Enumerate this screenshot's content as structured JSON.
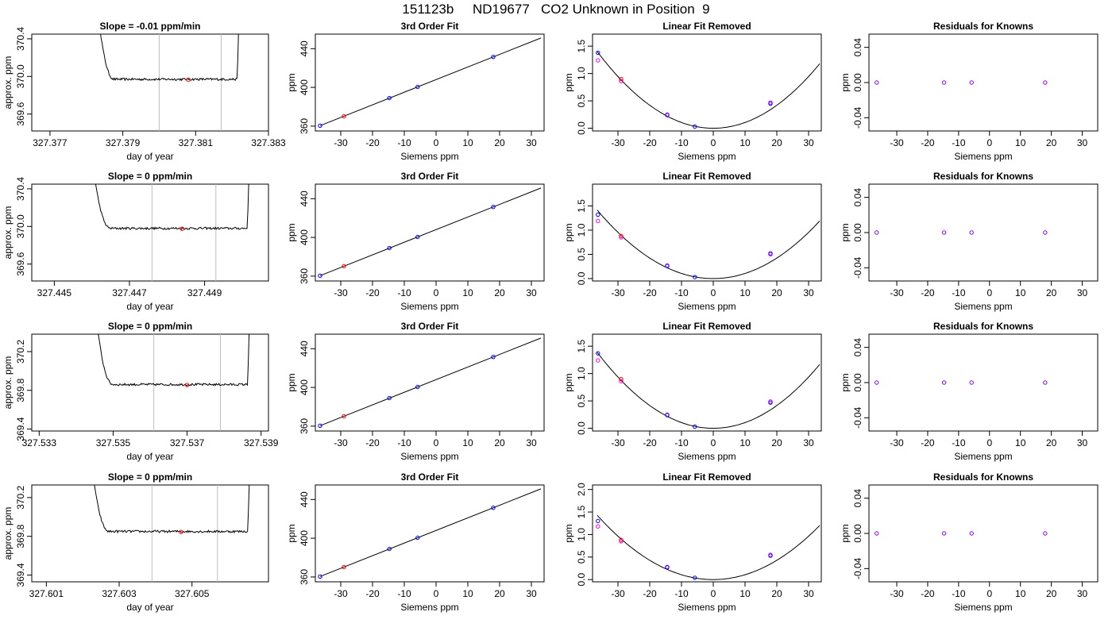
{
  "figure_title": "151123b     ND19677   CO2 Unknown in Position  9",
  "colors": {
    "known": "#0000ff",
    "unknown": "#ff0000",
    "residual": "#8800ff",
    "unknown_alt": "#ff00ff",
    "window": "#bebebe",
    "line": "#000000"
  },
  "chart_data": [
    {
      "id": "p00",
      "type": "line",
      "title": "Slope =  -0.01  ppm/min",
      "xlabel": "day of year",
      "ylabel": "approx. ppm",
      "xlim": [
        327.3765,
        327.383
      ],
      "ylim": [
        369.42,
        370.45
      ],
      "xticks": [
        327.377,
        327.379,
        327.381,
        327.383
      ],
      "xtick_labels": [
        "327.377",
        "327.379",
        "327.381",
        "327.383"
      ],
      "yticks": [
        369.6,
        370.0,
        370.4
      ],
      "ytick_labels": [
        "369.6",
        "370.0",
        "370.4"
      ],
      "vlines": [
        327.38,
        327.3817
      ],
      "trace": {
        "x0": 327.3783,
        "x1": 327.3822,
        "level": 369.97,
        "start": 370.75,
        "end": 370.75
      },
      "marker": {
        "x": 327.3808,
        "y": 369.965
      }
    },
    {
      "id": "p01",
      "type": "scatter",
      "title": "3rd Order Fit",
      "xlabel": "Siemens ppm",
      "ylabel": "ppm",
      "xlim": [
        -38,
        34
      ],
      "ylim": [
        355,
        455
      ],
      "xticks": [
        -30,
        -20,
        -10,
        0,
        10,
        20,
        30
      ],
      "xtick_labels": [
        "-30",
        "-20",
        "-10",
        "0",
        "10",
        "20",
        "30"
      ],
      "yticks": [
        360,
        400,
        440
      ],
      "ytick_labels": [
        "360",
        "400",
        "440"
      ],
      "fit_line": [
        [
          -36.5,
          360.5
        ],
        [
          33,
          451
        ]
      ],
      "known_points": [
        [
          -36.5,
          360.5
        ],
        [
          -14.7,
          389
        ],
        [
          -5.8,
          400.5
        ],
        [
          18,
          431.5
        ]
      ],
      "unknown_points": [
        [
          -29,
          370.2
        ]
      ]
    },
    {
      "id": "p02",
      "type": "scatter",
      "title": "Linear Fit Removed",
      "xlabel": "Siemens ppm",
      "ylabel": "ppm",
      "xlim": [
        -38,
        34
      ],
      "ylim": [
        -0.05,
        1.72
      ],
      "xticks": [
        -30,
        -20,
        -10,
        0,
        10,
        20,
        30
      ],
      "xtick_labels": [
        "-30",
        "-20",
        "-10",
        "0",
        "10",
        "20",
        "30"
      ],
      "yticks": [
        0.0,
        0.5,
        1.0,
        1.5
      ],
      "ytick_labels": [
        "0.0",
        "0.5",
        "1.0",
        "1.5"
      ],
      "curve": {
        "a": 0.00105,
        "b": 0.0,
        "c": 0.0,
        "xmin": -36.5,
        "xmax": 33.5
      },
      "known_points": [
        [
          -36.3,
          1.38
        ],
        [
          -14.5,
          0.24
        ],
        [
          -5.8,
          0.03
        ],
        [
          18,
          0.45
        ]
      ],
      "unknown_points": [
        [
          -29,
          0.9
        ]
      ],
      "alt_points": [
        [
          -36.3,
          1.24
        ],
        [
          -29,
          0.86
        ],
        [
          -14.5,
          0.25
        ],
        [
          18,
          0.47
        ]
      ]
    },
    {
      "id": "p03",
      "type": "scatter",
      "title": "Residuals for Knowns",
      "xlabel": "Siemens ppm",
      "ylabel": "ppm",
      "xlim": [
        -39,
        35
      ],
      "ylim": [
        -0.055,
        0.055
      ],
      "xticks": [
        -30,
        -20,
        -10,
        0,
        10,
        20,
        30
      ],
      "xtick_labels": [
        "-30",
        "-20",
        "-10",
        "0",
        "10",
        "20",
        "30"
      ],
      "yticks": [
        -0.04,
        0.0,
        0.04
      ],
      "ytick_labels": [
        "-0.04",
        "0.00",
        "0.04"
      ],
      "residual_points": [
        [
          -36.5,
          0.0
        ],
        [
          -14.7,
          0.0
        ],
        [
          -5.8,
          0.0
        ],
        [
          18,
          0.0
        ]
      ]
    },
    {
      "id": "p10",
      "type": "line",
      "title": "Slope =  0  ppm/min",
      "xlabel": "day of year",
      "ylabel": "approx. ppm",
      "xlim": [
        327.4444,
        327.4507
      ],
      "ylim": [
        369.42,
        370.45
      ],
      "xticks": [
        327.445,
        327.447,
        327.449
      ],
      "xtick_labels": [
        "327.445",
        "327.447",
        "327.449"
      ],
      "yticks": [
        369.6,
        370.0,
        370.4
      ],
      "ytick_labels": [
        "369.6",
        "370.0",
        "370.4"
      ],
      "vlines": [
        327.4476,
        327.4493
      ],
      "trace": {
        "x0": 327.446,
        "x1": 327.4502,
        "level": 369.98,
        "start": 370.75,
        "end": 370.75
      },
      "marker": {
        "x": 327.4484,
        "y": 369.975
      }
    },
    {
      "id": "p11",
      "type": "scatter",
      "title": "3rd Order Fit",
      "xlabel": "Siemens ppm",
      "ylabel": "ppm",
      "xlim": [
        -38,
        34
      ],
      "ylim": [
        355,
        455
      ],
      "xticks": [
        -30,
        -20,
        -10,
        0,
        10,
        20,
        30
      ],
      "xtick_labels": [
        "-30",
        "-20",
        "-10",
        "0",
        "10",
        "20",
        "30"
      ],
      "yticks": [
        360,
        400,
        440
      ],
      "ytick_labels": [
        "360",
        "400",
        "440"
      ],
      "fit_line": [
        [
          -36.5,
          360.5
        ],
        [
          33,
          451
        ]
      ],
      "known_points": [
        [
          -36.5,
          360.5
        ],
        [
          -14.7,
          389
        ],
        [
          -5.8,
          400.5
        ],
        [
          18,
          431.5
        ]
      ],
      "unknown_points": [
        [
          -29,
          370.3
        ]
      ]
    },
    {
      "id": "p12",
      "type": "scatter",
      "title": "Linear Fit Removed",
      "xlabel": "Siemens ppm",
      "ylabel": "ppm",
      "xlim": [
        -38,
        34
      ],
      "ylim": [
        -0.05,
        1.95
      ],
      "xticks": [
        -30,
        -20,
        -10,
        0,
        10,
        20,
        30
      ],
      "xtick_labels": [
        "-30",
        "-20",
        "-10",
        "0",
        "10",
        "20",
        "30"
      ],
      "yticks": [
        0.0,
        0.5,
        1.0,
        1.5
      ],
      "ytick_labels": [
        "0.0",
        "0.5",
        "1.0",
        "1.5"
      ],
      "curve": {
        "a": 0.00106,
        "b": 0.0,
        "c": 0.0,
        "xmin": -36.5,
        "xmax": 33.5
      },
      "known_points": [
        [
          -36.3,
          1.32
        ],
        [
          -14.5,
          0.26
        ],
        [
          -5.8,
          0.03
        ],
        [
          18,
          0.52
        ]
      ],
      "unknown_points": [
        [
          -29,
          0.88
        ]
      ],
      "alt_points": [
        [
          -36.3,
          1.19
        ],
        [
          -29,
          0.85
        ],
        [
          -14.5,
          0.27
        ],
        [
          18,
          0.5
        ]
      ]
    },
    {
      "id": "p13",
      "type": "scatter",
      "title": "Residuals for Knowns",
      "xlabel": "Siemens ppm",
      "ylabel": "ppm",
      "xlim": [
        -39,
        35
      ],
      "ylim": [
        -0.055,
        0.055
      ],
      "xticks": [
        -30,
        -20,
        -10,
        0,
        10,
        20,
        30
      ],
      "xtick_labels": [
        "-30",
        "-20",
        "-10",
        "0",
        "10",
        "20",
        "30"
      ],
      "yticks": [
        -0.04,
        0.0,
        0.04
      ],
      "ytick_labels": [
        "-0.04",
        "0.00",
        "0.04"
      ],
      "residual_points": [
        [
          -36.5,
          0.0
        ],
        [
          -14.7,
          0.0
        ],
        [
          -5.8,
          0.0
        ],
        [
          18,
          0.0
        ]
      ]
    },
    {
      "id": "p20",
      "type": "line",
      "title": "Slope =  0  ppm/min",
      "xlabel": "day of year",
      "ylabel": "approx. ppm",
      "xlim": [
        327.5328,
        327.5392
      ],
      "ylim": [
        369.38,
        370.38
      ],
      "xticks": [
        327.533,
        327.535,
        327.537,
        327.539
      ],
      "xtick_labels": [
        "327.533",
        "327.535",
        "327.537",
        "327.539"
      ],
      "yticks": [
        369.4,
        369.8,
        370.2
      ],
      "ytick_labels": [
        "369.4",
        "369.8",
        "370.2"
      ],
      "vlines": [
        327.5361,
        327.5379
      ],
      "trace": {
        "x0": 327.5345,
        "x1": 327.5387,
        "level": 369.86,
        "start": 370.7,
        "end": 370.7
      },
      "marker": {
        "x": 327.537,
        "y": 369.855
      }
    },
    {
      "id": "p21",
      "type": "scatter",
      "title": "3rd Order Fit",
      "xlabel": "Siemens ppm",
      "ylabel": "ppm",
      "xlim": [
        -38,
        34
      ],
      "ylim": [
        355,
        455
      ],
      "xticks": [
        -30,
        -20,
        -10,
        0,
        10,
        20,
        30
      ],
      "xtick_labels": [
        "-30",
        "-20",
        "-10",
        "0",
        "10",
        "20",
        "30"
      ],
      "yticks": [
        360,
        400,
        440
      ],
      "ytick_labels": [
        "360",
        "400",
        "440"
      ],
      "fit_line": [
        [
          -36.5,
          360.5
        ],
        [
          33,
          451
        ]
      ],
      "known_points": [
        [
          -36.5,
          360.5
        ],
        [
          -14.7,
          389
        ],
        [
          -5.8,
          400.5
        ],
        [
          18,
          431.5
        ]
      ],
      "unknown_points": [
        [
          -29,
          370.2
        ]
      ]
    },
    {
      "id": "p22",
      "type": "scatter",
      "title": "Linear Fit Removed",
      "xlabel": "Siemens ppm",
      "ylabel": "ppm",
      "xlim": [
        -38,
        34
      ],
      "ylim": [
        -0.05,
        1.72
      ],
      "xticks": [
        -30,
        -20,
        -10,
        0,
        10,
        20,
        30
      ],
      "xtick_labels": [
        "-30",
        "-20",
        "-10",
        "0",
        "10",
        "20",
        "30"
      ],
      "yticks": [
        0.0,
        0.5,
        1.0,
        1.5
      ],
      "ytick_labels": [
        "0.0",
        "0.5",
        "1.0",
        "1.5"
      ],
      "curve": {
        "a": 0.00104,
        "b": 0.0,
        "c": 0.0,
        "xmin": -36.5,
        "xmax": 33.5
      },
      "known_points": [
        [
          -36.3,
          1.37
        ],
        [
          -14.5,
          0.24
        ],
        [
          -5.8,
          0.03
        ],
        [
          18,
          0.47
        ]
      ],
      "unknown_points": [
        [
          -29,
          0.9
        ]
      ],
      "alt_points": [
        [
          -36.3,
          1.24
        ],
        [
          -29,
          0.86
        ],
        [
          -14.5,
          0.25
        ],
        [
          18,
          0.49
        ]
      ]
    },
    {
      "id": "p23",
      "type": "scatter",
      "title": "Residuals for Knowns",
      "xlabel": "Siemens ppm",
      "ylabel": "ppm",
      "xlim": [
        -39,
        35
      ],
      "ylim": [
        -0.055,
        0.055
      ],
      "xticks": [
        -30,
        -20,
        -10,
        0,
        10,
        20,
        30
      ],
      "xtick_labels": [
        "-30",
        "-20",
        "-10",
        "0",
        "10",
        "20",
        "30"
      ],
      "yticks": [
        -0.04,
        0.0,
        0.04
      ],
      "ytick_labels": [
        "-0.04",
        "0.00",
        "0.04"
      ],
      "residual_points": [
        [
          -36.5,
          0.0
        ],
        [
          -14.7,
          0.0
        ],
        [
          -5.8,
          0.0
        ],
        [
          18,
          0.0
        ]
      ]
    },
    {
      "id": "p30",
      "type": "line",
      "title": "Slope =  0  ppm/min",
      "xlabel": "day of year",
      "ylabel": "approx. ppm",
      "xlim": [
        327.6006,
        327.6071
      ],
      "ylim": [
        369.33,
        370.33
      ],
      "xticks": [
        327.601,
        327.603,
        327.605
      ],
      "xtick_labels": [
        "327.601",
        "327.603",
        "327.605"
      ],
      "yticks": [
        369.4,
        369.8,
        370.2
      ],
      "ytick_labels": [
        "369.4",
        "369.8",
        "370.2"
      ],
      "vlines": [
        327.6039,
        327.6057
      ],
      "trace": {
        "x0": 327.6022,
        "x1": 327.6066,
        "level": 369.85,
        "start": 370.7,
        "end": 370.7
      },
      "marker": {
        "x": 327.6047,
        "y": 369.845
      }
    },
    {
      "id": "p31",
      "type": "scatter",
      "title": "3rd Order Fit",
      "xlabel": "Siemens ppm",
      "ylabel": "ppm",
      "xlim": [
        -38,
        34
      ],
      "ylim": [
        355,
        455
      ],
      "xticks": [
        -30,
        -20,
        -10,
        0,
        10,
        20,
        30
      ],
      "xtick_labels": [
        "-30",
        "-20",
        "-10",
        "0",
        "10",
        "20",
        "30"
      ],
      "yticks": [
        360,
        400,
        440
      ],
      "ytick_labels": [
        "360",
        "400",
        "440"
      ],
      "fit_line": [
        [
          -36.5,
          360.5
        ],
        [
          33,
          451
        ]
      ],
      "known_points": [
        [
          -36.5,
          360.5
        ],
        [
          -14.7,
          389
        ],
        [
          -5.8,
          400.5
        ],
        [
          18,
          431.5
        ]
      ],
      "unknown_points": [
        [
          -29,
          370.2
        ]
      ]
    },
    {
      "id": "p32",
      "type": "scatter",
      "title": "Linear Fit Removed",
      "xlabel": "Siemens ppm",
      "ylabel": "ppm",
      "xlim": [
        -38,
        34
      ],
      "ylim": [
        -0.05,
        2.1
      ],
      "xticks": [
        -30,
        -20,
        -10,
        0,
        10,
        20,
        30
      ],
      "xtick_labels": [
        "-30",
        "-20",
        "-10",
        "0",
        "10",
        "20",
        "30"
      ],
      "yticks": [
        0.0,
        0.5,
        1.0,
        1.5,
        2.0
      ],
      "ytick_labels": [
        "0.0",
        "0.5",
        "1.0",
        "1.5",
        "2.0"
      ],
      "curve": {
        "a": 0.00107,
        "b": 0.0,
        "c": 0.0,
        "xmin": -36.5,
        "xmax": 33.5
      },
      "known_points": [
        [
          -36.3,
          1.3
        ],
        [
          -14.5,
          0.27
        ],
        [
          -5.8,
          0.04
        ],
        [
          18,
          0.53
        ]
      ],
      "unknown_points": [
        [
          -29,
          0.88
        ]
      ],
      "alt_points": [
        [
          -36.3,
          1.18
        ],
        [
          -29,
          0.85
        ],
        [
          -14.5,
          0.28
        ],
        [
          18,
          0.55
        ]
      ]
    },
    {
      "id": "p33",
      "type": "scatter",
      "title": "Residuals for Knowns",
      "xlabel": "Siemens ppm",
      "ylabel": "ppm",
      "xlim": [
        -39,
        35
      ],
      "ylim": [
        -0.055,
        0.055
      ],
      "xticks": [
        -30,
        -20,
        -10,
        0,
        10,
        20,
        30
      ],
      "xtick_labels": [
        "-30",
        "-20",
        "-10",
        "0",
        "10",
        "20",
        "30"
      ],
      "yticks": [
        -0.04,
        0.0,
        0.04
      ],
      "ytick_labels": [
        "-0.04",
        "0.00",
        "0.04"
      ],
      "residual_points": [
        [
          -36.5,
          0.0
        ],
        [
          -14.7,
          0.0
        ],
        [
          -5.8,
          0.0
        ],
        [
          18,
          0.0
        ]
      ]
    }
  ]
}
